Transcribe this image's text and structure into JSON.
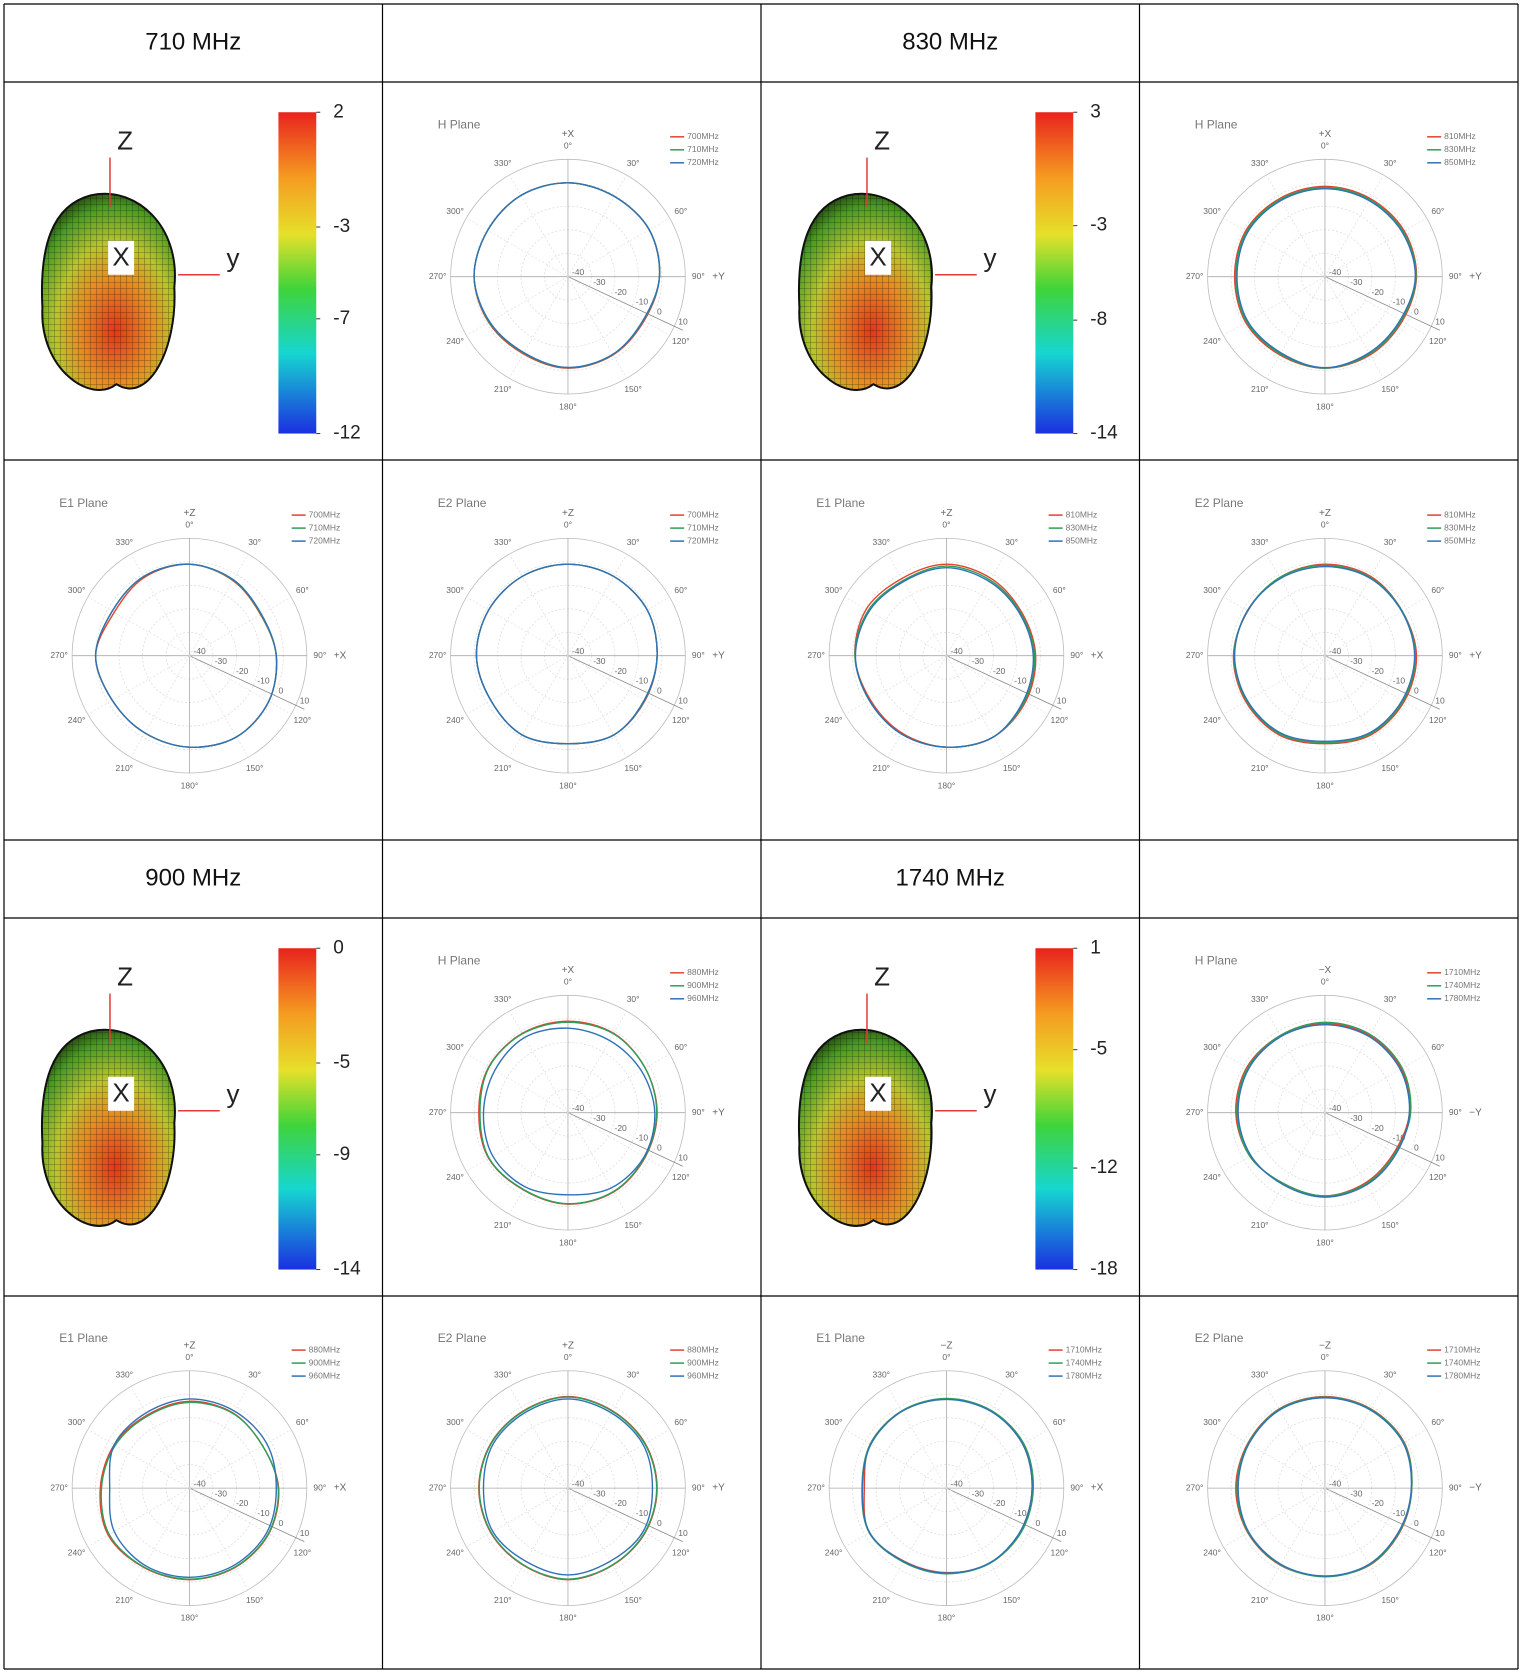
{
  "polar": {
    "rlim": [
      -40,
      10
    ],
    "rticks": [
      -40,
      -30,
      -20,
      -10,
      0,
      10
    ],
    "angles": [
      {
        "value": 0,
        "label": "0°"
      },
      {
        "value": 30,
        "label": "30°"
      },
      {
        "value": 60,
        "label": "60°"
      },
      {
        "value": 90,
        "label": "90°"
      },
      {
        "value": 120,
        "label": "120°"
      },
      {
        "value": 150,
        "label": "150°"
      },
      {
        "value": 180,
        "label": "180°"
      },
      {
        "value": 210,
        "label": "210°"
      },
      {
        "value": 240,
        "label": "240°"
      },
      {
        "value": 270,
        "label": "270°"
      },
      {
        "value": 300,
        "label": "300°"
      },
      {
        "value": 330,
        "label": "330°"
      }
    ]
  },
  "colors": [
    "#e2432f",
    "#2e9e5a",
    "#2f72b6"
  ],
  "blocks": [
    {
      "title": "710 MHz",
      "axes3d": [
        "Z",
        "X",
        "y"
      ],
      "cbar": [
        2,
        -3,
        -7,
        -12
      ],
      "legend": [
        "700MHz",
        "710MHz",
        "720MHz"
      ],
      "plots": [
        {
          "title": "H Plane",
          "top": "+X",
          "right": "+Y",
          "series": [
            [
              0,
              -0.5,
              0,
              -1,
              -2.5,
              -1.5,
              -1,
              -2,
              -1,
              0,
              -0.5,
              0
            ],
            [
              0,
              -0.5,
              0,
              -1,
              -2.8,
              -1.7,
              -1.2,
              -2.4,
              -1.3,
              0,
              -0.5,
              0
            ],
            [
              0,
              -0.5,
              0,
              -1,
              -3,
              -1.8,
              -1.3,
              -2.6,
              -1.5,
              0,
              -0.5,
              0
            ]
          ]
        },
        {
          "title": "E1 Plane",
          "top": "+Z",
          "right": "+X",
          "series": [
            [
              -1,
              -3,
              -5,
              -3,
              -1,
              0,
              -1,
              -2,
              -2,
              0,
              -3,
              -1.5
            ],
            [
              -1,
              -2.8,
              -4.8,
              -3,
              -1,
              0,
              -1,
              -2,
              -2,
              0,
              -2,
              -1
            ],
            [
              -1,
              -2.6,
              -4.6,
              -3,
              -1,
              0,
              -1,
              -2,
              -2,
              0,
              -2,
              -1
            ]
          ]
        },
        {
          "title": "E2 Plane",
          "top": "+Z",
          "right": "+Y",
          "series": [
            [
              -1,
              -1,
              -1,
              -2,
              -2,
              -1,
              -2.5,
              -1,
              -2,
              -1,
              -1,
              -1
            ],
            [
              -1,
              -1,
              -1,
              -2,
              -2.2,
              -1,
              -2.5,
              -1,
              -2,
              -1,
              -1,
              -1
            ],
            [
              -1,
              -1,
              -1,
              -2,
              -2.4,
              -1,
              -2.5,
              -1,
              -2,
              -1,
              -1,
              -1
            ]
          ]
        }
      ]
    },
    {
      "title": "830 MHz",
      "axes3d": [
        "Z",
        "X",
        "y"
      ],
      "cbar": [
        3,
        -3,
        -8,
        -14
      ],
      "legend": [
        "810MHz",
        "830MHz",
        "850MHz"
      ],
      "plots": [
        {
          "title": "H Plane",
          "top": "+X",
          "right": "+Y",
          "series": [
            [
              -1.5,
              -1.5,
              -1,
              -1,
              -2,
              -1.5,
              -1,
              -1.5,
              -1,
              -1.5,
              -1,
              -1.5
            ],
            [
              -2,
              -2,
              -1.5,
              -1.2,
              -2.5,
              -2,
              -1,
              -2,
              -1.5,
              -2,
              -1.5,
              -2
            ],
            [
              -2.5,
              -2.5,
              -2,
              -1.5,
              -3,
              -2.5,
              -1.2,
              -2.5,
              -2,
              -2.5,
              -2,
              -2.5
            ]
          ]
        },
        {
          "title": "E1 Plane",
          "top": "+Z",
          "right": "+X",
          "series": [
            [
              -1,
              -2,
              -3,
              -2,
              -1,
              0,
              -1,
              -2,
              -2.5,
              -1,
              -0.5,
              -2
            ],
            [
              -1.8,
              -2.8,
              -3.5,
              -2.5,
              -1.5,
              0,
              -1,
              -1.5,
              -2,
              -1,
              -1.5,
              -3
            ],
            [
              -2.5,
              -3.5,
              -4,
              -3,
              -2,
              0,
              -1,
              -1.5,
              -2,
              -1.2,
              -2,
              -3.5
            ]
          ]
        },
        {
          "title": "E2 Plane",
          "top": "+Z",
          "right": "+Y",
          "series": [
            [
              -1,
              -1,
              -2,
              -1,
              -1,
              -1,
              -2.5,
              -1,
              -1,
              -1,
              -2,
              -1.5
            ],
            [
              -1.5,
              -1.5,
              -2,
              -1.5,
              -1.5,
              -1.5,
              -3,
              -1.5,
              -1.5,
              -1.2,
              -1.8,
              -1.5
            ],
            [
              -2,
              -1.8,
              -2.2,
              -1.8,
              -2,
              -2,
              -3.5,
              -2,
              -1.8,
              -1.5,
              -1.8,
              -2
            ]
          ]
        }
      ]
    },
    {
      "title": "900 MHz",
      "axes3d": [
        "Z",
        "X",
        "y"
      ],
      "cbar": [
        0,
        -5,
        -9,
        -14
      ],
      "legend": [
        "880MHz",
        "900MHz",
        "960MHz"
      ],
      "plots": [
        {
          "title": "H Plane",
          "top": "+X",
          "right": "+Y",
          "series": [
            [
              -1,
              -1,
              -2,
              -2,
              -2,
              -1,
              -1,
              -2,
              -1,
              -2,
              -1,
              -1
            ],
            [
              -1.5,
              -1.2,
              -2,
              -2.2,
              -2.2,
              -1.2,
              -1.2,
              -2.2,
              -1.2,
              -2.5,
              -1.2,
              -1.2
            ],
            [
              -4,
              -4.5,
              -4,
              -3,
              -2.5,
              -3,
              -5,
              -3.5,
              -3,
              -4,
              -4,
              -3
            ]
          ]
        },
        {
          "title": "E1 Plane",
          "top": "+Z",
          "right": "+X",
          "series": [
            [
              -3,
              -3,
              -4,
              -2,
              -1,
              -1,
              -1,
              -1,
              0,
              -2,
              -3,
              -4
            ],
            [
              -3.5,
              -3.2,
              -4,
              -2.2,
              -1.2,
              -1.2,
              -1.2,
              -1.2,
              -0.5,
              -2.5,
              -3.5,
              -4.5
            ],
            [
              -2,
              -2,
              -2,
              -3,
              -2,
              -2,
              -2,
              -2,
              -3,
              -6,
              -3,
              -3
            ]
          ]
        },
        {
          "title": "E2 Plane",
          "top": "+Z",
          "right": "+Y",
          "series": [
            [
              -1,
              -2,
              -2,
              -2,
              -2,
              -2,
              -1,
              -2,
              -2,
              -2,
              -2,
              -2
            ],
            [
              -1.2,
              -2.2,
              -2.2,
              -2.2,
              -2.2,
              -2.2,
              -1.2,
              -2.2,
              -2.2,
              -2.2,
              -2.2,
              -2.2
            ],
            [
              -2,
              -3,
              -3,
              -4,
              -3,
              -4,
              -3,
              -4,
              -3,
              -4,
              -3,
              -3
            ]
          ]
        }
      ]
    },
    {
      "title": "1740 MHz",
      "axes3d": [
        "Z",
        "X",
        "y"
      ],
      "cbar": [
        1,
        -5,
        -12,
        -18
      ],
      "legend": [
        "1710MHz",
        "1740MHz",
        "1780MHz"
      ],
      "plots": [
        {
          "title": "H Plane",
          "top": "−X",
          "right": "−Y",
          "series": [
            [
              -2,
              -2,
              -2.5,
              -4,
              -6,
              -5.5,
              -4.5,
              -5,
              -3,
              -2,
              -1.5,
              -2
            ],
            [
              -1.5,
              -1.5,
              -2,
              -3.5,
              -5.5,
              -5,
              -4.5,
              -5,
              -3,
              -2.5,
              -2,
              -2
            ],
            [
              -2.5,
              -2.5,
              -3,
              -4,
              -5,
              -4.5,
              -4,
              -4.5,
              -3.5,
              -3,
              -2.5,
              -2.5
            ]
          ]
        },
        {
          "title": "E1 Plane",
          "top": "−Z",
          "right": "+X",
          "series": [
            [
              -2,
              -2,
              -2.5,
              -3.5,
              -3.5,
              -3,
              -4,
              -4,
              -2,
              -5,
              -2.5,
              -2
            ],
            [
              -1.8,
              -1.8,
              -2,
              -3,
              -3,
              -3,
              -3.5,
              -3.5,
              -2,
              -4,
              -2.5,
              -2
            ],
            [
              -2.2,
              -2.2,
              -2.5,
              -3.5,
              -3.5,
              -3.2,
              -3.8,
              -3.8,
              -2.2,
              -4.2,
              -2.8,
              -2.2
            ]
          ]
        },
        {
          "title": "E2 Plane",
          "top": "−Z",
          "right": "−Y",
          "series": [
            [
              -1,
              -1,
              -1,
              -3,
              -3,
              -2,
              -2.5,
              -2,
              -2,
              -2,
              -2,
              -1
            ],
            [
              -1.2,
              -1.2,
              -1.2,
              -3,
              -3.2,
              -2.2,
              -2.2,
              -2.2,
              -2.2,
              -2.5,
              -2.2,
              -1.2
            ],
            [
              -1.5,
              -1.5,
              -1.5,
              -3.2,
              -3.5,
              -2.5,
              -2.5,
              -2.5,
              -2.5,
              -3,
              -2.5,
              -1.5
            ]
          ]
        }
      ]
    }
  ]
}
